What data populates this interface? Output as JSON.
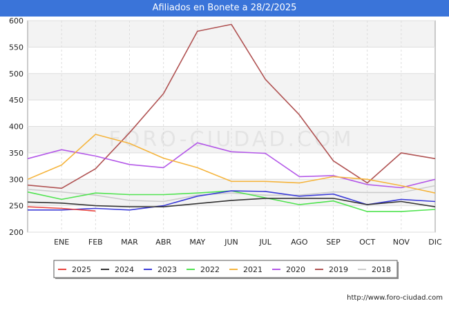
{
  "title": "Afiliados en Bonete a 28/2/2025",
  "source": "http://www.foro-ciudad.com",
  "watermark": "FORO-CIUDAD.COM",
  "chart_data": {
    "type": "line",
    "title": "Afiliados en Bonete a 28/2/2025",
    "xlabel": "",
    "ylabel": "",
    "categories": [
      "",
      "ENE",
      "FEB",
      "MAR",
      "ABR",
      "MAY",
      "JUN",
      "JUL",
      "AGO",
      "SEP",
      "OCT",
      "NOV",
      "DIC"
    ],
    "ylim": [
      200,
      600
    ],
    "yticks": [
      200,
      250,
      300,
      350,
      400,
      450,
      500,
      550,
      600
    ],
    "grid": true,
    "legend_position": "bottom",
    "series": [
      {
        "name": "2025",
        "color": "#e8423c",
        "values": [
          248,
          245,
          240,
          null,
          null,
          null,
          null,
          null,
          null,
          null,
          null,
          null,
          null
        ]
      },
      {
        "name": "2024",
        "color": "#333333",
        "values": [
          257,
          255,
          250,
          248,
          248,
          254,
          260,
          264,
          264,
          264,
          252,
          258,
          248
        ]
      },
      {
        "name": "2023",
        "color": "#3b3bd8",
        "values": [
          242,
          242,
          245,
          242,
          250,
          268,
          278,
          277,
          268,
          272,
          252,
          262,
          258
        ]
      },
      {
        "name": "2022",
        "color": "#4fe34f",
        "values": [
          276,
          262,
          274,
          271,
          271,
          274,
          278,
          265,
          252,
          259,
          239,
          239,
          243
        ]
      },
      {
        "name": "2021",
        "color": "#f5b43c",
        "values": [
          300,
          327,
          385,
          368,
          340,
          322,
          296,
          296,
          293,
          305,
          300,
          288,
          274
        ]
      },
      {
        "name": "2020",
        "color": "#b357e8",
        "values": [
          339,
          356,
          344,
          328,
          322,
          369,
          352,
          349,
          305,
          307,
          290,
          284,
          300
        ]
      },
      {
        "name": "2019",
        "color": "#b05252",
        "values": [
          289,
          283,
          320,
          388,
          462,
          580,
          593,
          489,
          422,
          335,
          293,
          350,
          339
        ]
      },
      {
        "name": "2018",
        "color": "#cccccc",
        "values": [
          281,
          276,
          270,
          260,
          258,
          270,
          274,
          270,
          270,
          276,
          275,
          275,
          288
        ]
      }
    ]
  }
}
